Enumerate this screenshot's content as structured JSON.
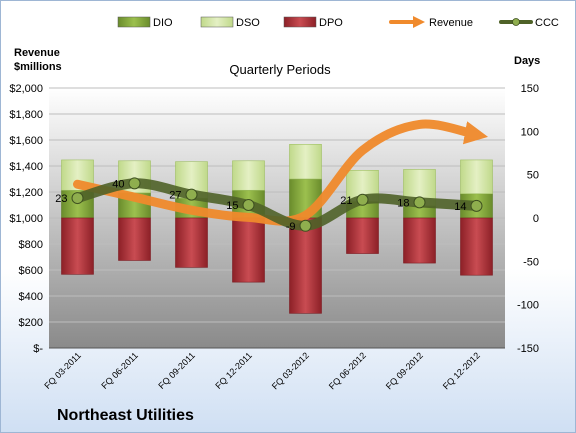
{
  "company": "Northeast Utilities",
  "chart_data": {
    "type": "bar",
    "title": "Quarterly Periods",
    "ylabel_left_line1": "Revenue",
    "ylabel_left_line2": "$millions",
    "ylabel_right": "Days",
    "categories": [
      "FQ 03-2011",
      "FQ 06-2011",
      "FQ 09-2011",
      "FQ 12-2011",
      "FQ 03-2012",
      "FQ 06-2012",
      "FQ 09-2012",
      "FQ 12-2012"
    ],
    "left_axis": {
      "min": 0,
      "max": 2000,
      "step": 200,
      "tick_labels": [
        "$-",
        "$200",
        "$400",
        "$600",
        "$800",
        "$1,000",
        "$1,200",
        "$1,400",
        "$1,600",
        "$1,800",
        "$2,000"
      ]
    },
    "right_axis": {
      "min": -150,
      "max": 150,
      "step": 50,
      "tick_labels": [
        "-150",
        "-100",
        "-50",
        "0",
        "50",
        "100",
        "150"
      ]
    },
    "grid": true,
    "legend_position": "top",
    "series": [
      {
        "name": "DIO",
        "type": "bar",
        "axis": "right",
        "color": "#7ea33a",
        "values": [
          32,
          29,
          23,
          32,
          45,
          19,
          14,
          28
        ]
      },
      {
        "name": "DSO",
        "type": "bar",
        "axis": "right",
        "color": "#d2e6a0",
        "values": [
          35,
          37,
          42,
          34,
          40,
          36,
          42,
          39
        ]
      },
      {
        "name": "DPO",
        "type": "bar",
        "axis": "right",
        "color": "#b3333a",
        "values": [
          -65,
          -49,
          -57,
          -74,
          -110,
          -41,
          -52,
          -66
        ]
      },
      {
        "name": "Revenue",
        "type": "line",
        "axis": "left",
        "color": "#f08a2c",
        "values": [
          1260,
          1160,
          1060,
          1005,
          1020,
          1520,
          1720,
          1640
        ]
      },
      {
        "name": "CCC",
        "type": "line",
        "axis": "right",
        "color": "#4f6228",
        "values": [
          23,
          40,
          27,
          15,
          -9,
          21,
          18,
          14
        ]
      }
    ],
    "data_labels": [
      "23",
      "40",
      "27",
      "15",
      "-9",
      "21",
      "18",
      "14"
    ]
  }
}
